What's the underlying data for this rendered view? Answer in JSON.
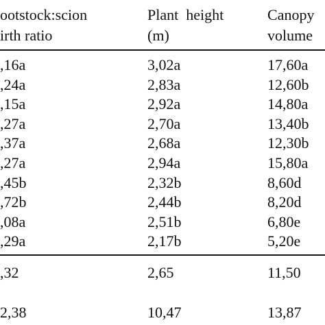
{
  "table": {
    "header": [
      [
        "ootstock:scion",
        "irth ratio"
      ],
      [
        "Plant  height",
        "(m)"
      ],
      [
        "Canopy",
        "volume"
      ]
    ],
    "rows": [
      [
        ",16a",
        "3,02a",
        "17,60a"
      ],
      [
        ",24a",
        "2,83a",
        "12,60b"
      ],
      [
        ",15a",
        "2,92a",
        "14,80a"
      ],
      [
        ",27a",
        "2,70a",
        "13,40b"
      ],
      [
        ",37a",
        "2,68a",
        "12,30b"
      ],
      [
        ",27a",
        "2,94a",
        "15,80a"
      ],
      [
        ",45b",
        "2,32b",
        "8,60d"
      ],
      [
        ",72b",
        "2,44b",
        "8,20d"
      ],
      [
        ",08a",
        "2,51b",
        "6,80e"
      ],
      [
        ",29a",
        "2,17b",
        "5,20e"
      ]
    ],
    "summary": [
      [
        ",32",
        "2,65",
        "11,50"
      ],
      [
        "2,38",
        "10,47",
        "13,87"
      ]
    ]
  }
}
